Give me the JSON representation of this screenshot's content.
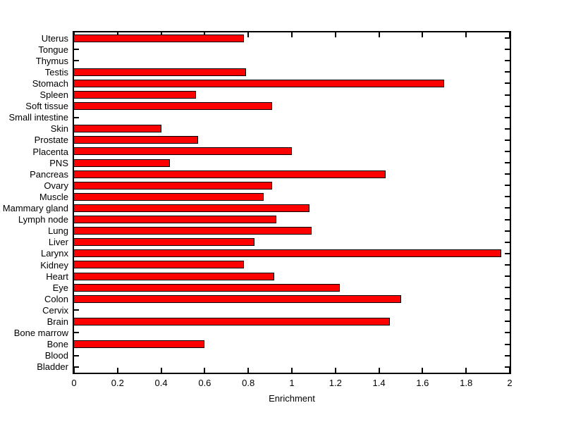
{
  "figure": {
    "background": "#ffffff",
    "plot_background": "#ffffff",
    "axis_color": "#000000"
  },
  "chart_data": {
    "type": "bar",
    "orientation": "horizontal",
    "title": "",
    "xlabel": "Enrichment",
    "ylabel": "",
    "xlim": [
      0,
      2
    ],
    "x_ticks": [
      0,
      0.2,
      0.4,
      0.6,
      0.8,
      1,
      1.2,
      1.4,
      1.6,
      1.8,
      2
    ],
    "x_tick_labels": [
      "0",
      "0.2",
      "0.4",
      "0.6",
      "0.8",
      "1",
      "1.2",
      "1.4",
      "1.6",
      "1.8",
      "2"
    ],
    "bar_color": "#ff0000",
    "bar_edge_color": "#000000",
    "grid": false,
    "legend": null,
    "categories": [
      "Uterus",
      "Tongue",
      "Thymus",
      "Testis",
      "Stomach",
      "Spleen",
      "Soft tissue",
      "Small intestine",
      "Skin",
      "Prostate",
      "Placenta",
      "PNS",
      "Pancreas",
      "Ovary",
      "Muscle",
      "Mammary gland",
      "Lymph node",
      "Lung",
      "Liver",
      "Larynx",
      "Kidney",
      "Heart",
      "Eye",
      "Colon",
      "Cervix",
      "Brain",
      "Bone marrow",
      "Bone",
      "Blood",
      "Bladder"
    ],
    "values": [
      0.78,
      0,
      0,
      0.79,
      1.7,
      0.56,
      0.91,
      0,
      0.4,
      0.57,
      1.0,
      0.44,
      1.43,
      0.91,
      0.87,
      1.08,
      0.93,
      1.09,
      0.83,
      1.96,
      0.78,
      0.92,
      1.22,
      1.5,
      0,
      1.45,
      0,
      0.6,
      0,
      0
    ]
  }
}
